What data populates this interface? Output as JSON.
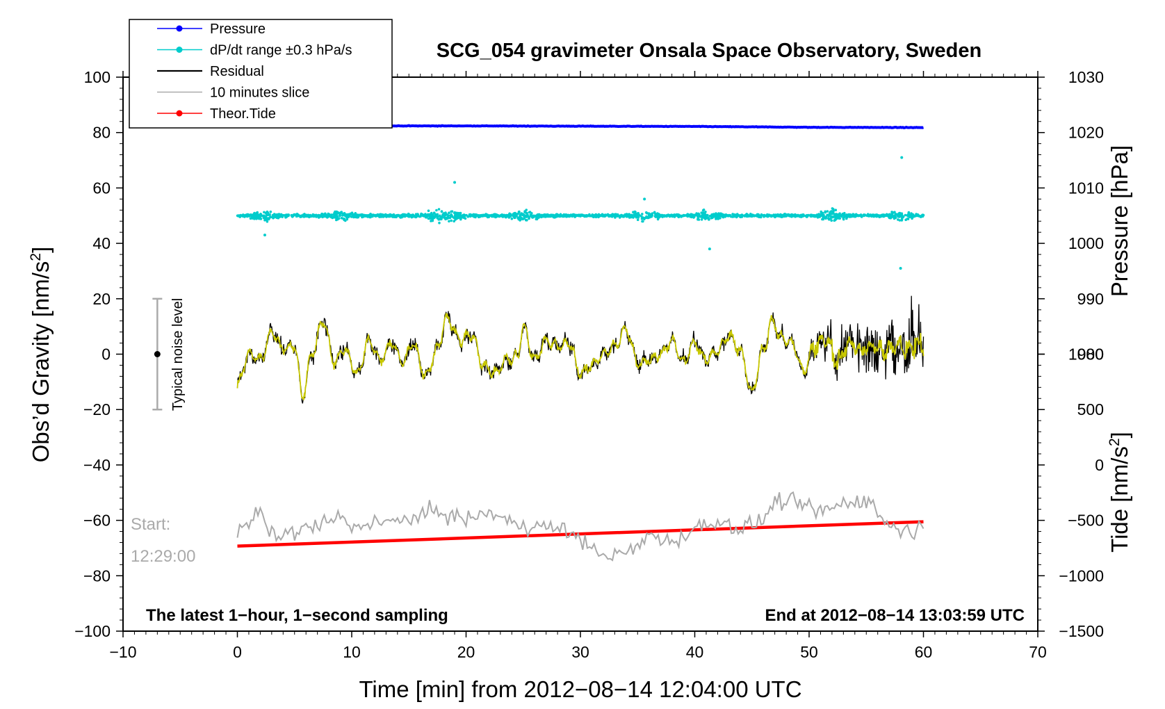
{
  "chart_data": {
    "type": "line",
    "title": "SCG_054 gravimeter Onsala Space Observatory, Sweden",
    "xlabel": "Time [min] from 2012−08−14 12:04:00 UTC",
    "ylabel_left": "Obs’d Gravity [nm/s",
    "ylabel_left_sup": "2",
    "ylabel_left_end": "]",
    "ylabel_right_top": "Pressure [hPa]",
    "ylabel_right_bottom": "Tide [nm/s",
    "ylabel_right_bottom_sup": "2",
    "ylabel_right_bottom_end": "]",
    "xlim": [
      -10,
      70
    ],
    "ylim": [
      -100,
      100
    ],
    "x_ticks": [
      "−10",
      "0",
      "10",
      "20",
      "30",
      "40",
      "50",
      "60",
      "70"
    ],
    "x_tick_values": [
      -10,
      0,
      10,
      20,
      30,
      40,
      50,
      60,
      70
    ],
    "y_ticks": [
      "100",
      "80",
      "60",
      "40",
      "20",
      "0",
      "−20",
      "−40",
      "−60",
      "−80",
      "−100"
    ],
    "y_tick_values": [
      100,
      80,
      60,
      40,
      20,
      0,
      -20,
      -40,
      -60,
      -80,
      -100
    ],
    "pressure_ticks": [
      "1030",
      "1020",
      "1010",
      "1000",
      "990",
      "980"
    ],
    "pressure_tick_values": [
      1030,
      1020,
      1010,
      1000,
      990,
      980
    ],
    "pressure_axis_range": [
      980,
      1030
    ],
    "tide_ticks": [
      "1000",
      "500",
      "0",
      "−500",
      "−1000",
      "−1500"
    ],
    "tide_tick_values": [
      1000,
      500,
      0,
      -500,
      -1000,
      -1500
    ],
    "tide_axis_range": [
      -1500,
      1000
    ],
    "legend": [
      {
        "label": "Pressure",
        "color": "#0000ff",
        "marker": true
      },
      {
        "label": "dP/dt range ±0.3 hPa/s",
        "color": "#00cccc",
        "marker": true
      },
      {
        "label": "Residual",
        "color": "#000000",
        "marker": false
      },
      {
        "label": "10 minutes slice",
        "color": "#aaaaaa",
        "marker": false
      },
      {
        "label": "Theor.Tide",
        "color": "#ff0000",
        "marker": true
      }
    ],
    "series": [
      {
        "name": "Pressure",
        "color": "#0000ff",
        "x": [
          0,
          10,
          20,
          30,
          40,
          50,
          60
        ],
        "values": [
          82.3,
          82.4,
          82.4,
          82.3,
          82.2,
          81.9,
          81.8
        ]
      },
      {
        "name": "dP/dt range ±0.3 hPa/s",
        "color": "#00cccc",
        "x_range": [
          0,
          60
        ],
        "center": 50,
        "spread": 2
      },
      {
        "name": "Residual",
        "color": "#000000",
        "x_range": [
          0,
          60
        ],
        "y_range": [
          -21,
          30
        ]
      },
      {
        "name": "Residual (smoothed)",
        "color": "#c8c800",
        "x_range": [
          0,
          60
        ],
        "y_range": [
          -17,
          15
        ]
      },
      {
        "name": "10 minutes slice",
        "color": "#aaaaaa",
        "x_range": [
          0,
          60
        ],
        "y_range": [
          -78,
          -49
        ]
      },
      {
        "name": "Theor.Tide",
        "color": "#ff0000",
        "x": [
          0,
          60
        ],
        "values": [
          -69.3,
          -60.5
        ]
      }
    ],
    "annotations": {
      "noise_label": "Typical noise level",
      "noise_x": -7,
      "noise_range": [
        -20,
        20
      ],
      "start_label": "Start:",
      "start_time": "12:29:00",
      "footer_left": "The latest 1−hour, 1−second sampling",
      "footer_right": "End at 2012−08−14 13:03:59 UTC"
    },
    "legend_position": "top-left"
  }
}
